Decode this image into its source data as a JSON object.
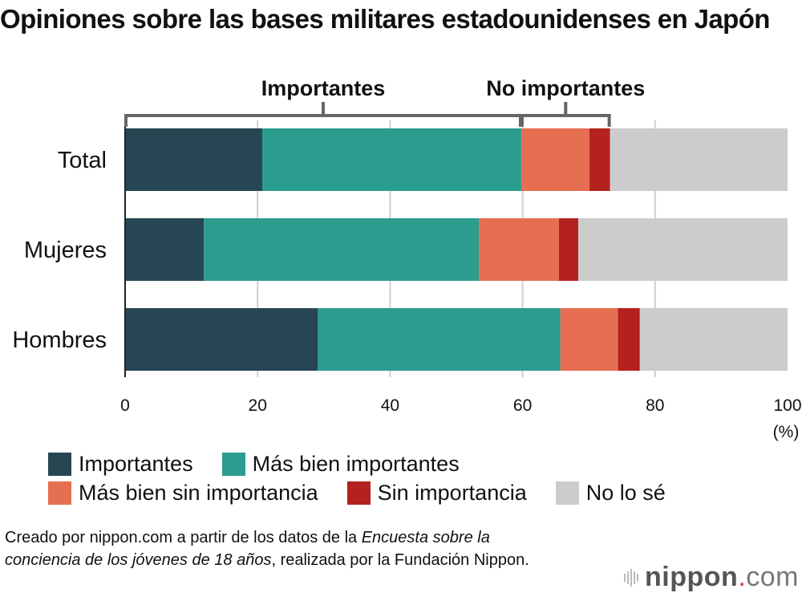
{
  "title": "Opiniones sobre las bases militares estadounidenses en Japón",
  "brackets": [
    {
      "label": "Importantes",
      "from": 0,
      "to_series": 1
    },
    {
      "label": "No importantes",
      "from_series": 2,
      "to_series": 3
    }
  ],
  "chart_data": {
    "type": "bar",
    "orientation": "horizontal",
    "stacked": true,
    "title": "Opiniones sobre las bases militares estadounidenses en Japón",
    "categories": [
      "Total",
      "Mujeres",
      "Hombres"
    ],
    "series": [
      {
        "name": "Importantes",
        "color": "#264653",
        "values": [
          20.7,
          11.9,
          29.1
        ]
      },
      {
        "name": "Más bien importantes",
        "color": "#2a9d8f",
        "values": [
          39.1,
          41.5,
          36.6
        ]
      },
      {
        "name": "Más bien sin importancia",
        "color": "#e76f51",
        "values": [
          10.3,
          12.1,
          8.7
        ]
      },
      {
        "name": "Sin importancia",
        "color": "#b3221e",
        "values": [
          3.1,
          2.9,
          3.3
        ]
      },
      {
        "name": "No lo sé",
        "color": "#cccccc",
        "values": [
          26.8,
          31.6,
          22.3
        ]
      }
    ],
    "xlim": [
      0,
      100
    ],
    "xticks": [
      "0",
      "20",
      "40",
      "60",
      "80",
      "100"
    ],
    "xunit": "(%)",
    "xlabel": "",
    "ylabel": "",
    "grid": true,
    "legend_position": "bottom"
  },
  "legend": {
    "rows": [
      [
        {
          "label": "Importantes",
          "color": "#264653"
        },
        {
          "label": "Más bien importantes",
          "color": "#2a9d8f"
        }
      ],
      [
        {
          "label": "Más bien sin importancia",
          "color": "#e76f51"
        },
        {
          "label": "Sin importancia",
          "color": "#b3221e"
        },
        {
          "label": "No lo sé",
          "color": "#cccccc"
        }
      ]
    ]
  },
  "source": {
    "part1": "Creado por nippon.com a partir de los datos de la ",
    "italic": "Encuesta sobre la conciencia de los jóvenes de 18 años",
    "part2": ", realizada por la Fundación Nippon."
  },
  "logo": {
    "name": "nippon",
    "dot": ".",
    "tld": "com"
  }
}
